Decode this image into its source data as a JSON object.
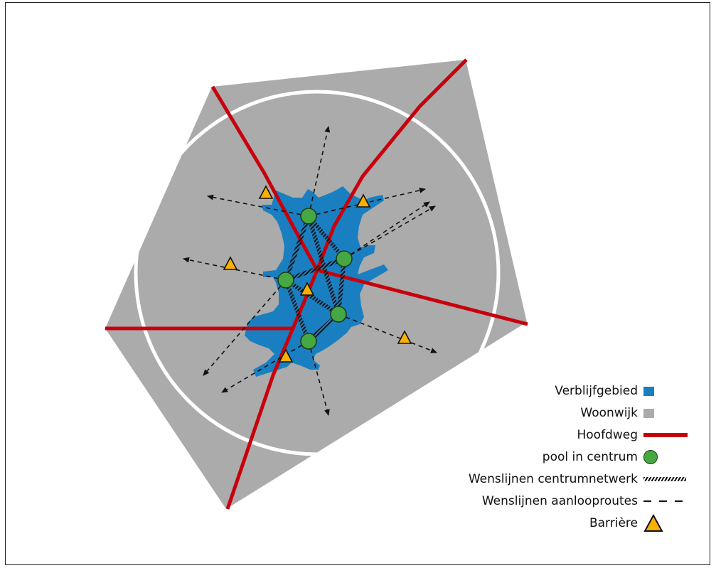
{
  "legend": {
    "items": [
      {
        "key": "verblijfgebied",
        "label": "Verblijfgebied",
        "symbol": "blue-square",
        "color": "#1a7fc1"
      },
      {
        "key": "woonwijk",
        "label": "Woonwijk",
        "symbol": "gray-square",
        "color": "#ababab"
      },
      {
        "key": "hoofdweg",
        "label": "Hoofdweg",
        "symbol": "red-line",
        "color": "#c8000c"
      },
      {
        "key": "pool",
        "label": "pool in centrum",
        "symbol": "green-circle",
        "color": "#46a842"
      },
      {
        "key": "centrumnetwerk",
        "label": "Wenslijnen centrumnetwerk",
        "symbol": "hatched-line",
        "color": "#111111"
      },
      {
        "key": "aanlooproutes",
        "label": "Wenslijnen aanlooproutes",
        "symbol": "dashed-line",
        "color": "#111111"
      },
      {
        "key": "barriere",
        "label": "Barrière",
        "symbol": "orange-triangle",
        "color": "#f9b000"
      }
    ]
  }
}
